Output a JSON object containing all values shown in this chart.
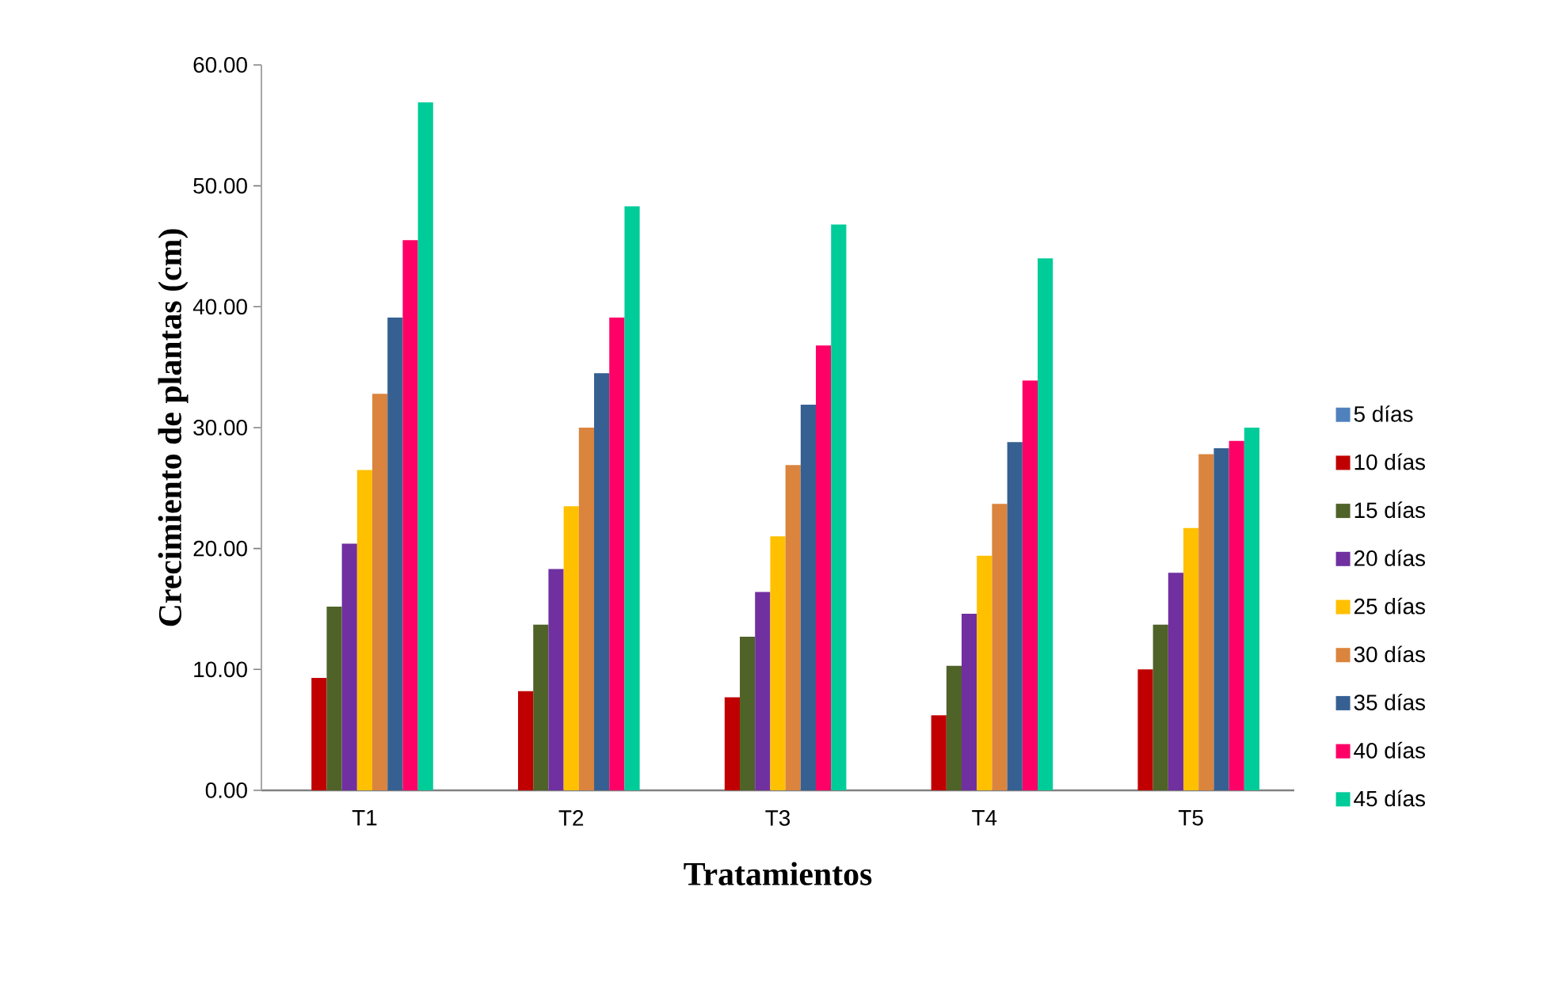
{
  "chart_data": {
    "type": "bar",
    "xlabel": "Tratamientos",
    "ylabel": "Crecimiento de plantas (cm)",
    "categories": [
      "T1",
      "T2",
      "T3",
      "T4",
      "T5"
    ],
    "series": [
      {
        "name": "5 días",
        "color": "#4f81bd",
        "values": [
          0,
          0,
          0,
          0,
          0
        ]
      },
      {
        "name": "10 días",
        "color": "#c00000",
        "values": [
          9.3,
          8.2,
          7.7,
          6.2,
          10.0
        ]
      },
      {
        "name": "15 días",
        "color": "#4f6228",
        "values": [
          15.2,
          13.7,
          12.7,
          10.3,
          13.7
        ]
      },
      {
        "name": "20 días",
        "color": "#7030a0",
        "values": [
          20.4,
          18.3,
          16.4,
          14.6,
          18.0
        ]
      },
      {
        "name": "25 días",
        "color": "#ffc000",
        "values": [
          26.5,
          23.5,
          21.0,
          19.4,
          21.7
        ]
      },
      {
        "name": "30 días",
        "color": "#db843d",
        "values": [
          32.8,
          30.0,
          26.9,
          23.7,
          27.8
        ]
      },
      {
        "name": "35 días",
        "color": "#366092",
        "values": [
          39.1,
          34.5,
          31.9,
          28.8,
          28.3
        ]
      },
      {
        "name": "40 días",
        "color": "#ff0066",
        "values": [
          45.5,
          39.1,
          36.8,
          33.9,
          28.9
        ]
      },
      {
        "name": "45 días",
        "color": "#00cc99",
        "values": [
          56.9,
          48.3,
          46.8,
          44.0,
          30.0
        ]
      }
    ],
    "ylim": [
      0,
      60
    ],
    "yticks": [
      {
        "value": 0,
        "label": "0.00"
      },
      {
        "value": 10,
        "label": "10.00"
      },
      {
        "value": 20,
        "label": "20.00"
      },
      {
        "value": 30,
        "label": "30.00"
      },
      {
        "value": 40,
        "label": "40.00"
      },
      {
        "value": 50,
        "label": "50.00"
      },
      {
        "value": 60,
        "label": "60.00"
      }
    ],
    "legend": "right",
    "grid": false
  }
}
